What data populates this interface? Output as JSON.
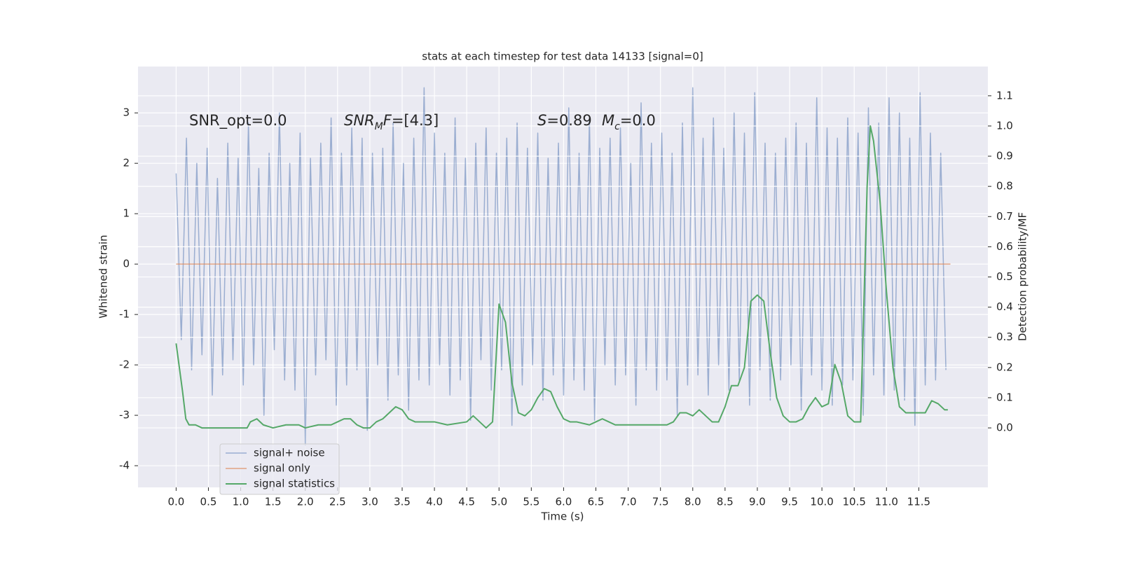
{
  "chart_data": {
    "type": "line",
    "title": "stats at each timestep for test data 14133 [signal=0]",
    "xlabel": "Time (s)",
    "ylabel": "Whitened strain",
    "y2label": "Detection probability/MF",
    "xlim": [
      -0.59,
      12.57
    ],
    "ylim": [
      -4.43,
      3.92
    ],
    "y2lim": [
      -0.197,
      1.197
    ],
    "xticks": [
      {
        "value": 0,
        "label": "0.0"
      },
      {
        "value": 0.5,
        "label": "0.5"
      },
      {
        "value": 1,
        "label": "1.0"
      },
      {
        "value": 1.5,
        "label": "1.5"
      },
      {
        "value": 2,
        "label": "2.0"
      },
      {
        "value": 2.5,
        "label": "2.5"
      },
      {
        "value": 3,
        "label": "3.0"
      },
      {
        "value": 3.5,
        "label": "3.5"
      },
      {
        "value": 4,
        "label": "4.0"
      },
      {
        "value": 4.5,
        "label": "4.5"
      },
      {
        "value": 5,
        "label": "5.0"
      },
      {
        "value": 5.5,
        "label": "5.5"
      },
      {
        "value": 6,
        "label": "6.0"
      },
      {
        "value": 6.5,
        "label": "6.5"
      },
      {
        "value": 7,
        "label": "7.0"
      },
      {
        "value": 7.5,
        "label": "7.5"
      },
      {
        "value": 8,
        "label": "8.0"
      },
      {
        "value": 8.5,
        "label": "8.5"
      },
      {
        "value": 9,
        "label": "9.0"
      },
      {
        "value": 9.5,
        "label": "9.5"
      },
      {
        "value": 10,
        "label": "10.0"
      },
      {
        "value": 10.5,
        "label": "10.5"
      },
      {
        "value": 11,
        "label": "11.0"
      },
      {
        "value": 11.5,
        "label": "11.5"
      }
    ],
    "yticks": [
      -4,
      -3,
      -2,
      -1,
      0,
      1,
      2,
      3
    ],
    "y2ticks": [
      {
        "value": 0,
        "label": "0.0"
      },
      {
        "value": 0.1,
        "label": "0.1"
      },
      {
        "value": 0.2,
        "label": "0.2"
      },
      {
        "value": 0.3,
        "label": "0.3"
      },
      {
        "value": 0.4,
        "label": "0.4"
      },
      {
        "value": 0.5,
        "label": "0.5"
      },
      {
        "value": 0.6,
        "label": "0.6"
      },
      {
        "value": 0.7,
        "label": "0.7"
      },
      {
        "value": 0.8,
        "label": "0.8"
      },
      {
        "value": 0.9,
        "label": "0.9"
      },
      {
        "value": 1,
        "label": "1.0"
      },
      {
        "value": 1.1,
        "label": "1.1"
      }
    ],
    "grid": true,
    "legend": "lower left",
    "annotations": [
      [
        {
          "text": "SNR_opt=0.0"
        }
      ],
      [
        {
          "text": "SNR",
          "style": "italic"
        },
        {
          "text": "M",
          "style": "sub"
        },
        {
          "text": "F",
          "style": "italic"
        },
        {
          "text": "=[4.3]"
        }
      ],
      [
        {
          "text": "S",
          "style": "italic"
        },
        {
          "text": "=0.89"
        }
      ],
      [
        {
          "text": "M",
          "style": "italic"
        },
        {
          "text": "c",
          "style": "sub"
        },
        {
          "text": "=0.0"
        }
      ]
    ],
    "series": [
      {
        "name": "signal+ noise",
        "color": "#4c72b0",
        "x": [
          0,
          0.08,
          0.16,
          0.24,
          0.32,
          0.4,
          0.48,
          0.56,
          0.64,
          0.72,
          0.8,
          0.88,
          0.96,
          1.04,
          1.12,
          1.2,
          1.28,
          1.36,
          1.44,
          1.52,
          1.6,
          1.68,
          1.76,
          1.84,
          1.92,
          2.0,
          2.08,
          2.16,
          2.24,
          2.32,
          2.4,
          2.48,
          2.56,
          2.64,
          2.72,
          2.8,
          2.88,
          2.96,
          3.04,
          3.12,
          3.2,
          3.28,
          3.36,
          3.44,
          3.52,
          3.6,
          3.68,
          3.76,
          3.84,
          3.92,
          4.0,
          4.08,
          4.16,
          4.24,
          4.32,
          4.4,
          4.48,
          4.56,
          4.64,
          4.72,
          4.8,
          4.88,
          4.96,
          5.04,
          5.12,
          5.2,
          5.28,
          5.36,
          5.44,
          5.52,
          5.6,
          5.68,
          5.76,
          5.84,
          5.92,
          6.0,
          6.08,
          6.16,
          6.24,
          6.32,
          6.4,
          6.48,
          6.56,
          6.64,
          6.72,
          6.8,
          6.88,
          6.96,
          7.04,
          7.12,
          7.2,
          7.28,
          7.36,
          7.44,
          7.52,
          7.6,
          7.68,
          7.76,
          7.84,
          7.92,
          8.0,
          8.08,
          8.16,
          8.24,
          8.32,
          8.4,
          8.48,
          8.56,
          8.64,
          8.72,
          8.8,
          8.88,
          8.96,
          9.04,
          9.12,
          9.2,
          9.28,
          9.36,
          9.44,
          9.52,
          9.6,
          9.68,
          9.76,
          9.84,
          9.92,
          10.0,
          10.08,
          10.16,
          10.24,
          10.32,
          10.4,
          10.48,
          10.56,
          10.64,
          10.72,
          10.8,
          10.88,
          10.96,
          11.04,
          11.12,
          11.2,
          11.28,
          11.36,
          11.44,
          11.52,
          11.6,
          11.68,
          11.76,
          11.84,
          11.92
        ],
        "values": [
          1.8,
          -1.5,
          2.5,
          -2.1,
          2.0,
          -1.8,
          2.3,
          -2.6,
          1.7,
          -2.2,
          2.4,
          -1.9,
          2.1,
          -2.4,
          2.8,
          -2.0,
          1.9,
          -3.0,
          2.2,
          -1.7,
          3.0,
          -2.3,
          2.0,
          -2.5,
          2.6,
          -3.6,
          2.1,
          -2.2,
          2.4,
          -1.9,
          2.9,
          -2.8,
          2.2,
          -2.4,
          2.7,
          -2.1,
          2.5,
          -3.3,
          2.2,
          -2.0,
          2.3,
          -2.7,
          2.8,
          -2.2,
          2.0,
          -2.9,
          2.5,
          -2.3,
          3.5,
          -2.4,
          2.6,
          -2.0,
          2.2,
          -2.6,
          2.9,
          -2.3,
          2.1,
          -3.1,
          2.4,
          -1.9,
          2.7,
          -2.5,
          2.2,
          -2.1,
          2.5,
          -3.2,
          2.8,
          -2.4,
          2.3,
          -2.0,
          2.6,
          -2.7,
          2.1,
          -2.2,
          2.4,
          -2.6,
          3.1,
          -2.3,
          2.2,
          -2.5,
          2.9,
          -3.1,
          2.3,
          -2.0,
          2.5,
          -2.4,
          2.7,
          -2.2,
          2.0,
          -2.8,
          3.2,
          -2.1,
          2.4,
          -2.5,
          2.6,
          -2.3,
          2.2,
          -3.0,
          2.8,
          -2.4,
          3.5,
          -2.2,
          2.5,
          -2.6,
          2.9,
          -2.0,
          2.3,
          -2.5,
          3.0,
          -2.3,
          2.6,
          -2.8,
          3.4,
          -2.1,
          2.4,
          -2.7,
          2.2,
          -2.3,
          2.5,
          -2.0,
          2.8,
          -2.9,
          2.4,
          -2.2,
          3.3,
          -2.5,
          2.7,
          -2.8,
          2.5,
          -2.4,
          2.9,
          -2.3,
          2.6,
          -3.0,
          3.1,
          -2.2,
          2.8,
          -2.6,
          3.3,
          -2.5,
          3.0,
          -2.7,
          2.5,
          -3.2,
          3.4,
          -2.4,
          2.6,
          -2.3,
          2.2,
          -2.1
        ]
      },
      {
        "name": "signal only",
        "color": "#dd8452",
        "x": [
          0,
          11.99
        ],
        "values": [
          0,
          0
        ]
      },
      {
        "name": "signal statistics",
        "color": "#55a868",
        "axis": "y2",
        "x": [
          0,
          0.1,
          0.15,
          0.2,
          0.3,
          0.4,
          0.6,
          0.8,
          1.0,
          1.1,
          1.15,
          1.25,
          1.35,
          1.5,
          1.7,
          1.9,
          2.0,
          2.2,
          2.4,
          2.5,
          2.6,
          2.7,
          2.8,
          2.9,
          3.0,
          3.1,
          3.2,
          3.3,
          3.4,
          3.5,
          3.6,
          3.7,
          3.8,
          4.0,
          4.2,
          4.5,
          4.6,
          4.7,
          4.8,
          4.9,
          5.0,
          5.1,
          5.2,
          5.3,
          5.4,
          5.5,
          5.6,
          5.7,
          5.8,
          5.9,
          6.0,
          6.1,
          6.2,
          6.4,
          6.5,
          6.6,
          6.7,
          6.8,
          7.0,
          7.2,
          7.4,
          7.6,
          7.7,
          7.8,
          7.9,
          8.0,
          8.1,
          8.2,
          8.3,
          8.4,
          8.5,
          8.6,
          8.7,
          8.8,
          8.9,
          9.0,
          9.1,
          9.2,
          9.3,
          9.4,
          9.5,
          9.6,
          9.7,
          9.8,
          9.9,
          10.0,
          10.1,
          10.2,
          10.3,
          10.4,
          10.5,
          10.6,
          10.7,
          10.75,
          10.8,
          10.9,
          11.0,
          11.1,
          11.2,
          11.3,
          11.4,
          11.5,
          11.6,
          11.7,
          11.8,
          11.9,
          11.95
        ],
        "values": [
          0.28,
          0.12,
          0.03,
          0.01,
          0.01,
          0.0,
          0.0,
          0.0,
          0.0,
          0.0,
          0.02,
          0.03,
          0.01,
          0.0,
          0.01,
          0.01,
          0.0,
          0.01,
          0.01,
          0.02,
          0.03,
          0.03,
          0.01,
          0.0,
          0.0,
          0.02,
          0.03,
          0.05,
          0.07,
          0.06,
          0.03,
          0.02,
          0.02,
          0.02,
          0.01,
          0.02,
          0.04,
          0.02,
          0.0,
          0.02,
          0.41,
          0.35,
          0.15,
          0.05,
          0.04,
          0.06,
          0.1,
          0.13,
          0.12,
          0.07,
          0.03,
          0.02,
          0.02,
          0.01,
          0.02,
          0.03,
          0.02,
          0.01,
          0.01,
          0.01,
          0.01,
          0.01,
          0.02,
          0.05,
          0.05,
          0.04,
          0.06,
          0.04,
          0.02,
          0.02,
          0.07,
          0.14,
          0.14,
          0.2,
          0.42,
          0.44,
          0.42,
          0.25,
          0.1,
          0.04,
          0.02,
          0.02,
          0.03,
          0.07,
          0.1,
          0.07,
          0.08,
          0.21,
          0.15,
          0.04,
          0.02,
          0.02,
          0.8,
          1.0,
          0.95,
          0.75,
          0.45,
          0.2,
          0.07,
          0.05,
          0.05,
          0.05,
          0.05,
          0.09,
          0.08,
          0.06,
          0.06
        ]
      }
    ]
  }
}
